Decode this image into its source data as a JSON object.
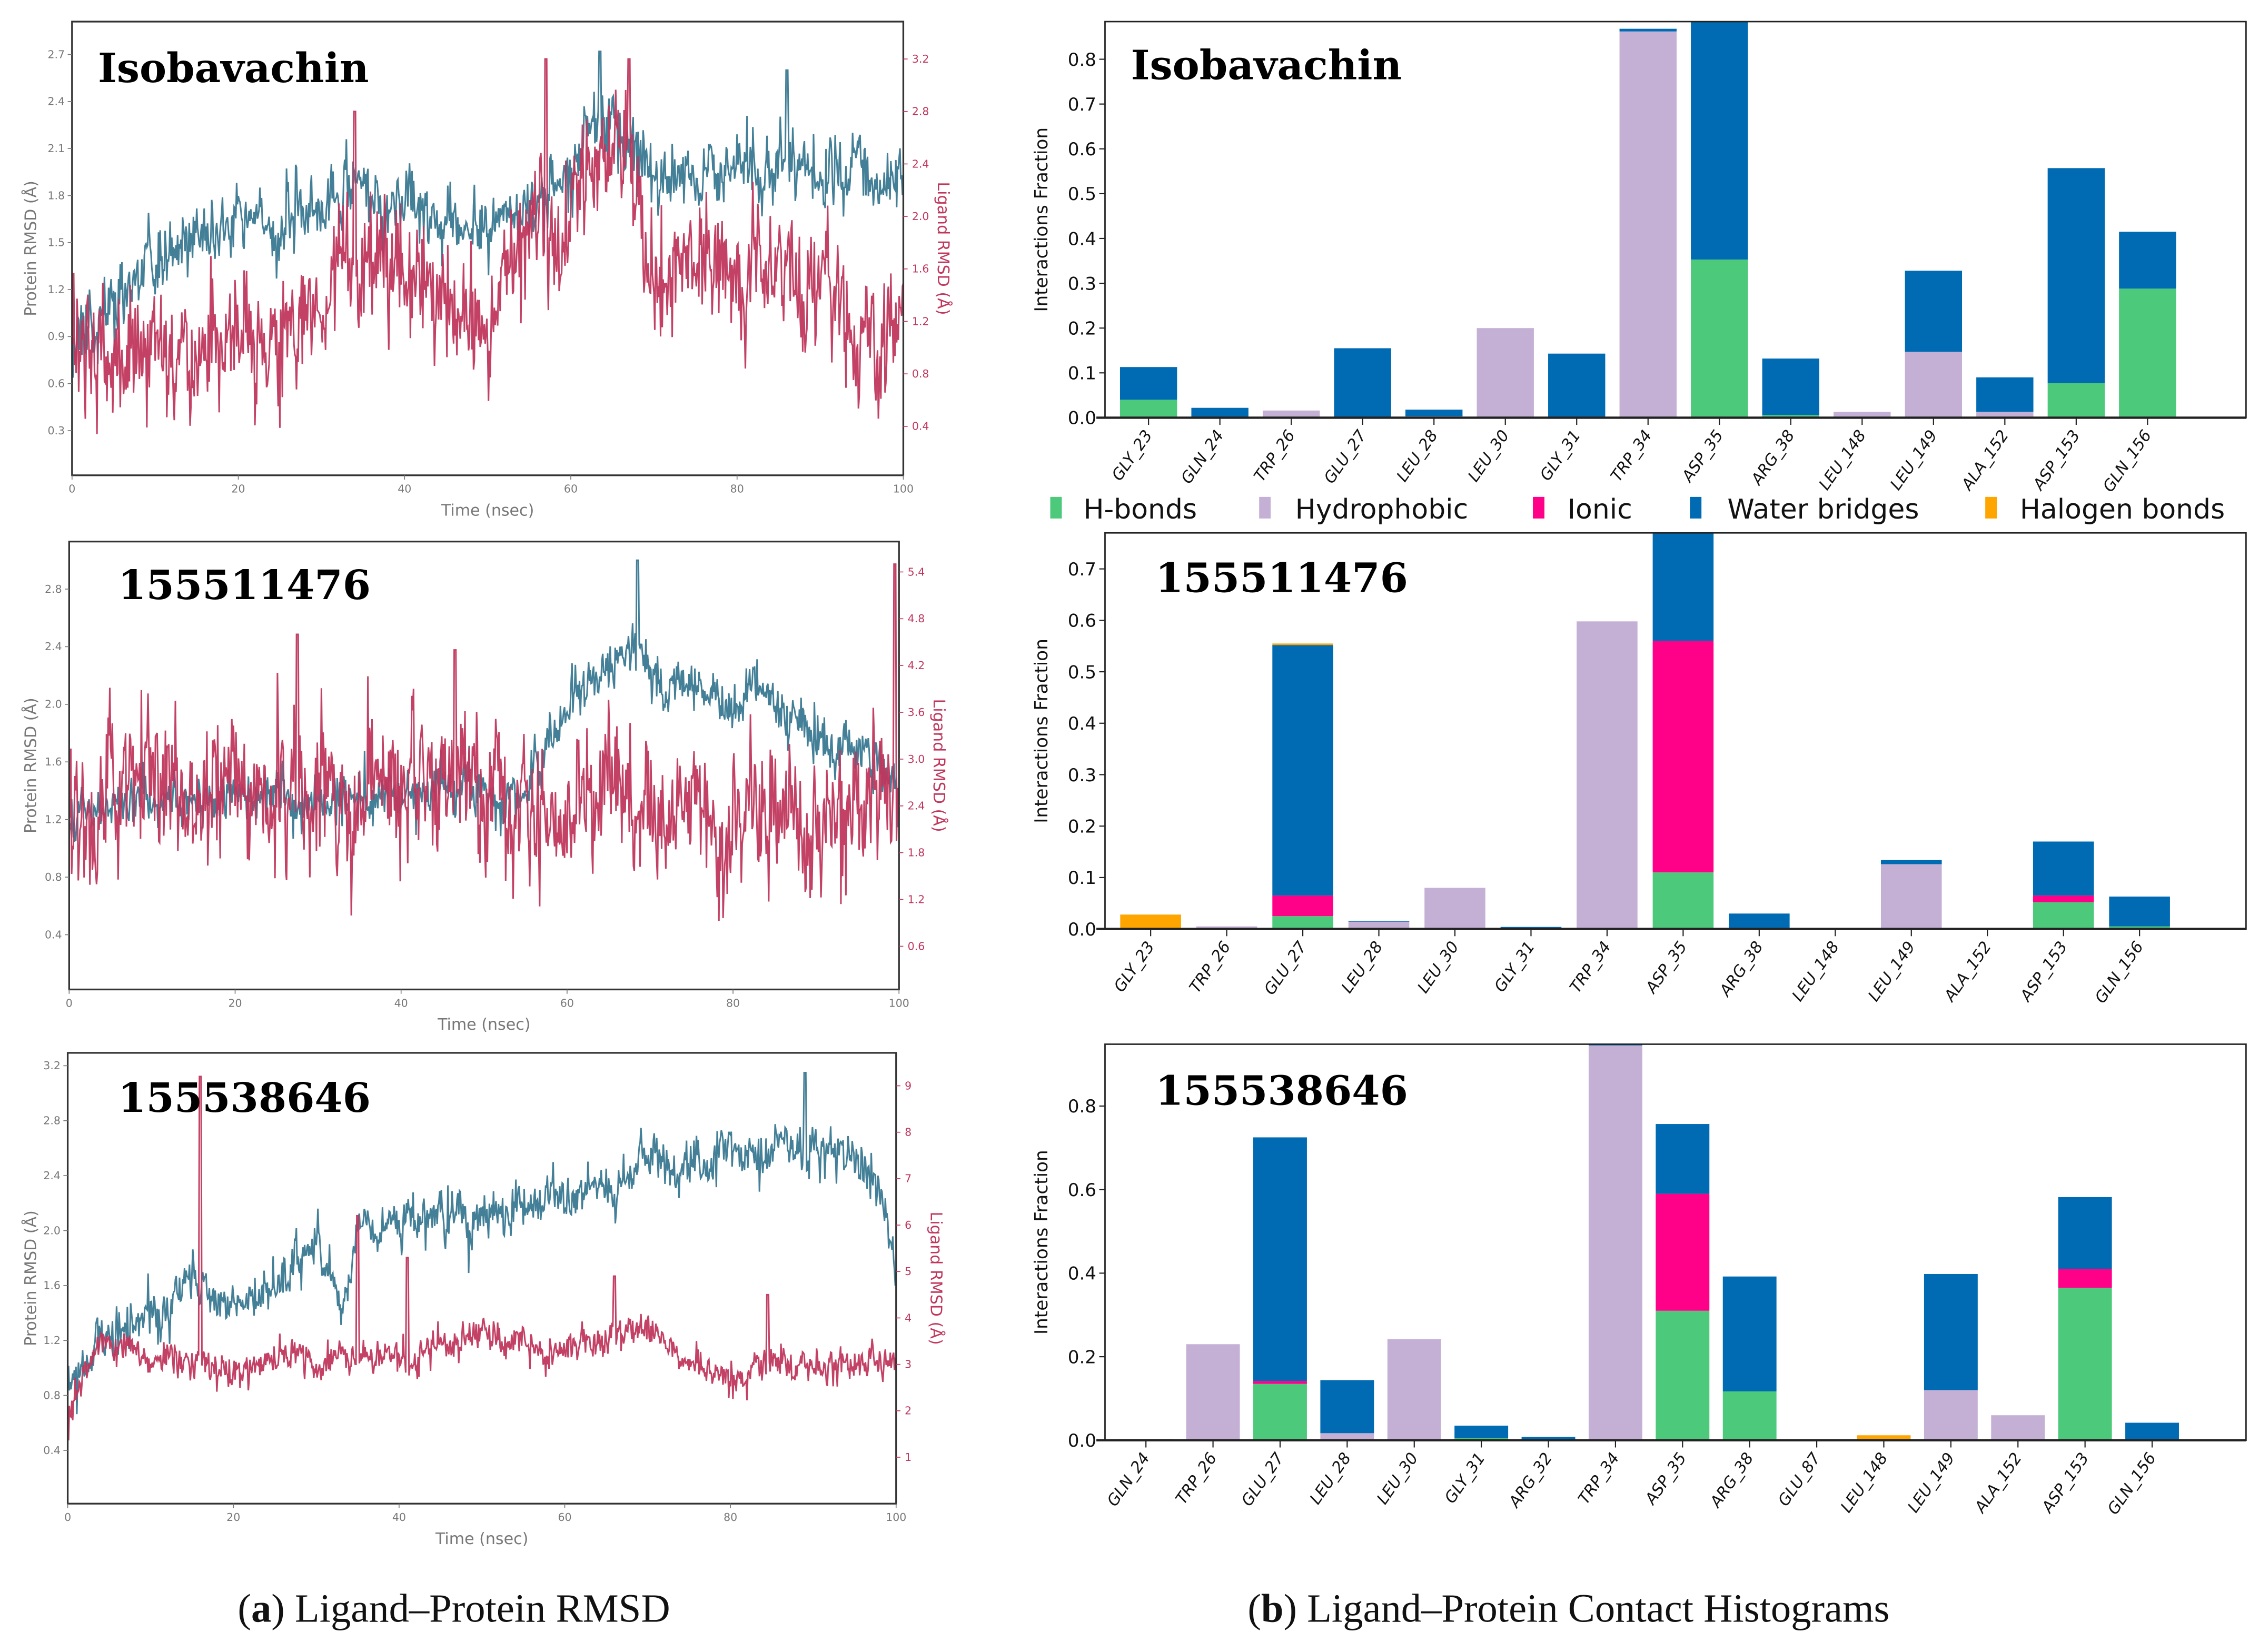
{
  "figure": {
    "caption_a_letter": "a",
    "caption_a_text": "Ligand–Protein RMSD",
    "caption_b_letter": "b",
    "caption_b_text": "Ligand–Protein Contact Histograms"
  },
  "legend": [
    {
      "label": "H-bonds",
      "key": "hb"
    },
    {
      "label": "Hydrophobic",
      "key": "hy"
    },
    {
      "label": "Ionic",
      "key": "ion"
    },
    {
      "label": "Water bridges",
      "key": "wb"
    },
    {
      "label": "Halogen bonds",
      "key": "hal"
    }
  ],
  "colors": {
    "protein": "#437f97",
    "ligand": "#c0375d",
    "hb": "#4cc97a",
    "hy": "#c5b0d5",
    "ion": "#ff0088",
    "wb": "#006bb3",
    "hal": "#ffa500"
  },
  "chart_data": [
    {
      "type": "line",
      "title": "Isobavachin",
      "xlabel": "Time (nsec)",
      "ylabel": "Protein RMSD (Å)",
      "y2label": "Ligand RMSD (Å)",
      "xlim": [
        0,
        100
      ],
      "ylim": [
        0.015,
        2.91
      ],
      "y2lim": [
        0.027,
        3.485
      ],
      "xticks": [
        "0",
        "20",
        "40",
        "60",
        "80",
        "100"
      ],
      "yticks": [
        "0.3",
        "0.6",
        "0.9",
        "1.2",
        "1.5",
        "1.8",
        "2.1",
        "2.4",
        "2.7"
      ],
      "y2ticks": [
        "0.4",
        "0.8",
        "1.2",
        "1.6",
        "2.0",
        "2.4",
        "2.8",
        "3.2"
      ],
      "series": [
        {
          "name": "Protein RMSD",
          "axis": "left",
          "noise": 0.12,
          "seed": 11,
          "trend": [
            [
              0,
              0.9
            ],
            [
              5,
              1.1
            ],
            [
              10,
              1.3
            ],
            [
              15,
              1.55
            ],
            [
              20,
              1.6
            ],
            [
              25,
              1.6
            ],
            [
              30,
              1.75
            ],
            [
              35,
              1.8
            ],
            [
              40,
              1.75
            ],
            [
              45,
              1.7
            ],
            [
              50,
              1.6
            ],
            [
              55,
              1.75
            ],
            [
              60,
              1.9
            ],
            [
              62,
              2.3
            ],
            [
              65,
              2.2
            ],
            [
              70,
              1.95
            ],
            [
              75,
              2.0
            ],
            [
              80,
              1.9
            ],
            [
              85,
              2.0
            ],
            [
              90,
              1.85
            ],
            [
              95,
              2.0
            ],
            [
              100,
              1.85
            ]
          ],
          "spikes": [
            [
              63.5,
              2.72
            ],
            [
              86,
              2.6
            ]
          ]
        },
        {
          "name": "Ligand RMSD",
          "axis": "right",
          "noise": 0.25,
          "seed": 12,
          "trend": [
            [
              0,
              0.9
            ],
            [
              10,
              1.0
            ],
            [
              20,
              1.0
            ],
            [
              30,
              1.3
            ],
            [
              35,
              1.7
            ],
            [
              40,
              1.45
            ],
            [
              50,
              1.3
            ],
            [
              52,
              1.7
            ],
            [
              60,
              2.1
            ],
            [
              63,
              2.6
            ],
            [
              67,
              2.3
            ],
            [
              70,
              1.7
            ],
            [
              80,
              1.7
            ],
            [
              90,
              1.6
            ],
            [
              97,
              1.0
            ],
            [
              100,
              1.5
            ]
          ],
          "spikes": [
            [
              57,
              3.2
            ],
            [
              67,
              3.2
            ],
            [
              34,
              2.8
            ]
          ]
        }
      ]
    },
    {
      "type": "line",
      "title": "155511476",
      "xlabel": "Time (nsec)",
      "ylabel": "Protein RMSD (Å)",
      "y2label": "Ligand RMSD (Å)",
      "xlim": [
        0,
        100
      ],
      "ylim": [
        0.02,
        3.13
      ],
      "y2lim": [
        0.046,
        5.79
      ],
      "xticks": [
        "0",
        "20",
        "40",
        "60",
        "80",
        "100"
      ],
      "yticks": [
        "0.4",
        "0.8",
        "1.2",
        "1.6",
        "2.0",
        "2.4",
        "2.8"
      ],
      "y2ticks": [
        "0.6",
        "1.2",
        "1.8",
        "2.4",
        "3.0",
        "3.6",
        "4.2",
        "4.8",
        "5.4"
      ],
      "series": [
        {
          "name": "Protein RMSD",
          "axis": "left",
          "noise": 0.1,
          "seed": 21,
          "trend": [
            [
              0,
              1.2
            ],
            [
              10,
              1.35
            ],
            [
              30,
              1.35
            ],
            [
              50,
              1.4
            ],
            [
              55,
              1.4
            ],
            [
              58,
              1.7
            ],
            [
              60,
              2.0
            ],
            [
              65,
              2.2
            ],
            [
              68,
              2.45
            ],
            [
              70,
              2.15
            ],
            [
              75,
              2.1
            ],
            [
              80,
              2.0
            ],
            [
              83,
              2.15
            ],
            [
              90,
              1.8
            ],
            [
              100,
              1.5
            ]
          ],
          "spikes": [
            [
              68.5,
              3.0
            ]
          ]
        },
        {
          "name": "Ligand RMSD",
          "axis": "right",
          "noise": 0.5,
          "seed": 22,
          "trend": [
            [
              0,
              2.3
            ],
            [
              10,
              2.6
            ],
            [
              50,
              2.6
            ],
            [
              60,
              2.2
            ],
            [
              65,
              2.8
            ],
            [
              70,
              2.3
            ],
            [
              80,
              2.0
            ],
            [
              90,
              2.2
            ],
            [
              100,
              2.4
            ]
          ],
          "spikes": [
            [
              27.5,
              4.6
            ],
            [
              46.5,
              4.4
            ],
            [
              99.5,
              5.5
            ]
          ]
        }
      ]
    },
    {
      "type": "line",
      "title": "155538646",
      "xlabel": "Time (nsec)",
      "ylabel": "Protein RMSD (Å)",
      "y2label": "Ligand RMSD (Å)",
      "xlim": [
        0,
        100
      ],
      "ylim": [
        0.012,
        3.294
      ],
      "y2lim": [
        0,
        9.71
      ],
      "xticks": [
        "0",
        "20",
        "40",
        "60",
        "80",
        "100"
      ],
      "yticks": [
        "0.4",
        "0.8",
        "1.2",
        "1.6",
        "2.0",
        "2.4",
        "2.8",
        "3.2"
      ],
      "y2ticks": [
        "1",
        "2",
        "3",
        "4",
        "5",
        "6",
        "7",
        "8",
        "9"
      ],
      "series": [
        {
          "name": "Protein RMSD",
          "axis": "left",
          "noise": 0.1,
          "seed": 31,
          "trend": [
            [
              0,
              0.85
            ],
            [
              3,
              1.15
            ],
            [
              8,
              1.3
            ],
            [
              10,
              1.35
            ],
            [
              15,
              1.65
            ],
            [
              20,
              1.5
            ],
            [
              25,
              1.6
            ],
            [
              30,
              1.9
            ],
            [
              33,
              1.5
            ],
            [
              35,
              2.0
            ],
            [
              40,
              2.1
            ],
            [
              50,
              2.1
            ],
            [
              60,
              2.25
            ],
            [
              70,
              2.45
            ],
            [
              80,
              2.55
            ],
            [
              85,
              2.6
            ],
            [
              90,
              2.6
            ],
            [
              95,
              2.45
            ],
            [
              98,
              2.3
            ],
            [
              100,
              1.6
            ]
          ],
          "spikes": [
            [
              89,
              3.15
            ]
          ]
        },
        {
          "name": "Ligand RMSD",
          "axis": "right",
          "noise": 0.2,
          "seed": 32,
          "trend": [
            [
              0,
              1.8
            ],
            [
              2,
              3.0
            ],
            [
              5,
              3.5
            ],
            [
              10,
              3.1
            ],
            [
              20,
              2.9
            ],
            [
              30,
              3.1
            ],
            [
              40,
              3.2
            ],
            [
              50,
              3.5
            ],
            [
              60,
              3.3
            ],
            [
              65,
              3.6
            ],
            [
              70,
              3.9
            ],
            [
              75,
              3.0
            ],
            [
              80,
              2.9
            ],
            [
              90,
              3.1
            ],
            [
              100,
              3.0
            ]
          ],
          "spikes": [
            [
              16,
              9.2
            ],
            [
              35,
              6.2
            ],
            [
              41,
              5.3
            ],
            [
              66,
              4.9
            ],
            [
              84.5,
              4.5
            ]
          ]
        }
      ]
    },
    {
      "type": "bar",
      "stacked": true,
      "title": "Isobavachin",
      "ylabel": "Interactions Fraction",
      "ylim": [
        0,
        0.884
      ],
      "yticks": [
        "0.0",
        "0.1",
        "0.2",
        "0.3",
        "0.4",
        "0.5",
        "0.6",
        "0.7",
        "0.8"
      ],
      "categories": [
        "GLY_23",
        "GLN_24",
        "TRP_26",
        "GLU_27",
        "LEU_28",
        "LEU_30",
        "GLY_31",
        "TRP_34",
        "ASP_35",
        "ARG_38",
        "LEU_148",
        "LEU_149",
        "ALA_152",
        "ASP_153",
        "GLN_156"
      ],
      "series": [
        {
          "name": "H-bonds",
          "key": "hb",
          "values": [
            0.04,
            0,
            0,
            0,
            0,
            0,
            0,
            0,
            0.353,
            0.006,
            0,
            0,
            0,
            0.077,
            0.288
          ]
        },
        {
          "name": "Hydrophobic",
          "key": "hy",
          "values": [
            0,
            0,
            0.016,
            0,
            0.003,
            0.2,
            0,
            0.862,
            0,
            0,
            0.013,
            0.147,
            0.013,
            0,
            0
          ]
        },
        {
          "name": "Ionic",
          "key": "ion",
          "values": [
            0,
            0,
            0,
            0,
            0,
            0,
            0,
            0,
            0,
            0,
            0,
            0,
            0,
            0,
            0
          ]
        },
        {
          "name": "Water bridges",
          "key": "wb",
          "values": [
            0.073,
            0.022,
            0,
            0.155,
            0.015,
            0,
            0.143,
            0.006,
            0.535,
            0.126,
            0,
            0.181,
            0.077,
            0.48,
            0.127
          ]
        },
        {
          "name": "Halogen bonds",
          "key": "hal",
          "values": [
            0,
            0,
            0,
            0,
            0,
            0,
            0,
            0,
            0,
            0,
            0,
            0,
            0,
            0,
            0
          ]
        }
      ]
    },
    {
      "type": "bar",
      "stacked": true,
      "title": "155511476",
      "ylabel": "Interactions Fraction",
      "ylim": [
        0,
        0.77
      ],
      "yticks": [
        "0.0",
        "0.1",
        "0.2",
        "0.3",
        "0.4",
        "0.5",
        "0.6",
        "0.7"
      ],
      "categories": [
        "GLY_23",
        "TRP_26",
        "GLU_27",
        "LEU_28",
        "LEU_30",
        "GLY_31",
        "TRP_34",
        "ASP_35",
        "ARG_38",
        "LEU_148",
        "LEU_149",
        "ALA_152",
        "ASP_153",
        "GLN_156"
      ],
      "series": [
        {
          "name": "H-bonds",
          "key": "hb",
          "values": [
            0,
            0,
            0.025,
            0,
            0,
            0,
            0,
            0.11,
            0,
            0,
            0,
            0,
            0.052,
            0.005
          ]
        },
        {
          "name": "Hydrophobic",
          "key": "hy",
          "values": [
            0,
            0.005,
            0,
            0.015,
            0.08,
            0,
            0.598,
            0,
            0,
            0,
            0.126,
            0,
            0,
            0
          ]
        },
        {
          "name": "Ionic",
          "key": "ion",
          "values": [
            0,
            0,
            0.04,
            0,
            0,
            0,
            0,
            0.45,
            0,
            0,
            0,
            0,
            0.013,
            0
          ]
        },
        {
          "name": "Water bridges",
          "key": "wb",
          "values": [
            0,
            0,
            0.487,
            0.001,
            0,
            0.004,
            0,
            0.25,
            0.03,
            0,
            0.008,
            0.002,
            0.105,
            0.058
          ]
        },
        {
          "name": "Halogen bonds",
          "key": "hal",
          "values": [
            0.028,
            0,
            0.003,
            0,
            0,
            0,
            0,
            0,
            0,
            0,
            0,
            0,
            0,
            0
          ]
        }
      ]
    },
    {
      "type": "bar",
      "stacked": true,
      "title": "155538646",
      "ylabel": "Interactions Fraction",
      "ylim": [
        0,
        0.948
      ],
      "yticks": [
        "0.0",
        "0.2",
        "0.4",
        "0.6",
        "0.8"
      ],
      "categories": [
        "GLN_24",
        "TRP_26",
        "GLU_27",
        "LEU_28",
        "LEU_30",
        "GLY_31",
        "ARG_32",
        "TRP_34",
        "ASP_35",
        "ARG_38",
        "GLU_87",
        "LEU_148",
        "LEU_149",
        "ALA_152",
        "ASP_153",
        "GLN_156"
      ],
      "series": [
        {
          "name": "H-bonds",
          "key": "hb",
          "values": [
            0,
            0,
            0.135,
            0,
            0,
            0.005,
            0,
            0,
            0.31,
            0.117,
            0,
            0,
            0,
            0,
            0.365,
            0
          ]
        },
        {
          "name": "Hydrophobic",
          "key": "hy",
          "values": [
            0,
            0.23,
            0,
            0.017,
            0.242,
            0,
            0,
            0.945,
            0,
            0,
            0,
            0,
            0.12,
            0.06,
            0,
            0
          ]
        },
        {
          "name": "Ionic",
          "key": "ion",
          "values": [
            0,
            0,
            0.007,
            0,
            0,
            0,
            0,
            0,
            0.28,
            0,
            0,
            0,
            0,
            0,
            0.045,
            0
          ]
        },
        {
          "name": "Water bridges",
          "key": "wb",
          "values": [
            0.003,
            0,
            0.583,
            0.127,
            0,
            0.03,
            0.008,
            0.005,
            0.167,
            0.275,
            0.002,
            0,
            0.278,
            0,
            0.172,
            0.042
          ]
        },
        {
          "name": "Halogen bonds",
          "key": "hal",
          "values": [
            0,
            0,
            0,
            0,
            0,
            0,
            0,
            0,
            0,
            0,
            0,
            0.012,
            0,
            0,
            0,
            0
          ]
        }
      ]
    }
  ]
}
